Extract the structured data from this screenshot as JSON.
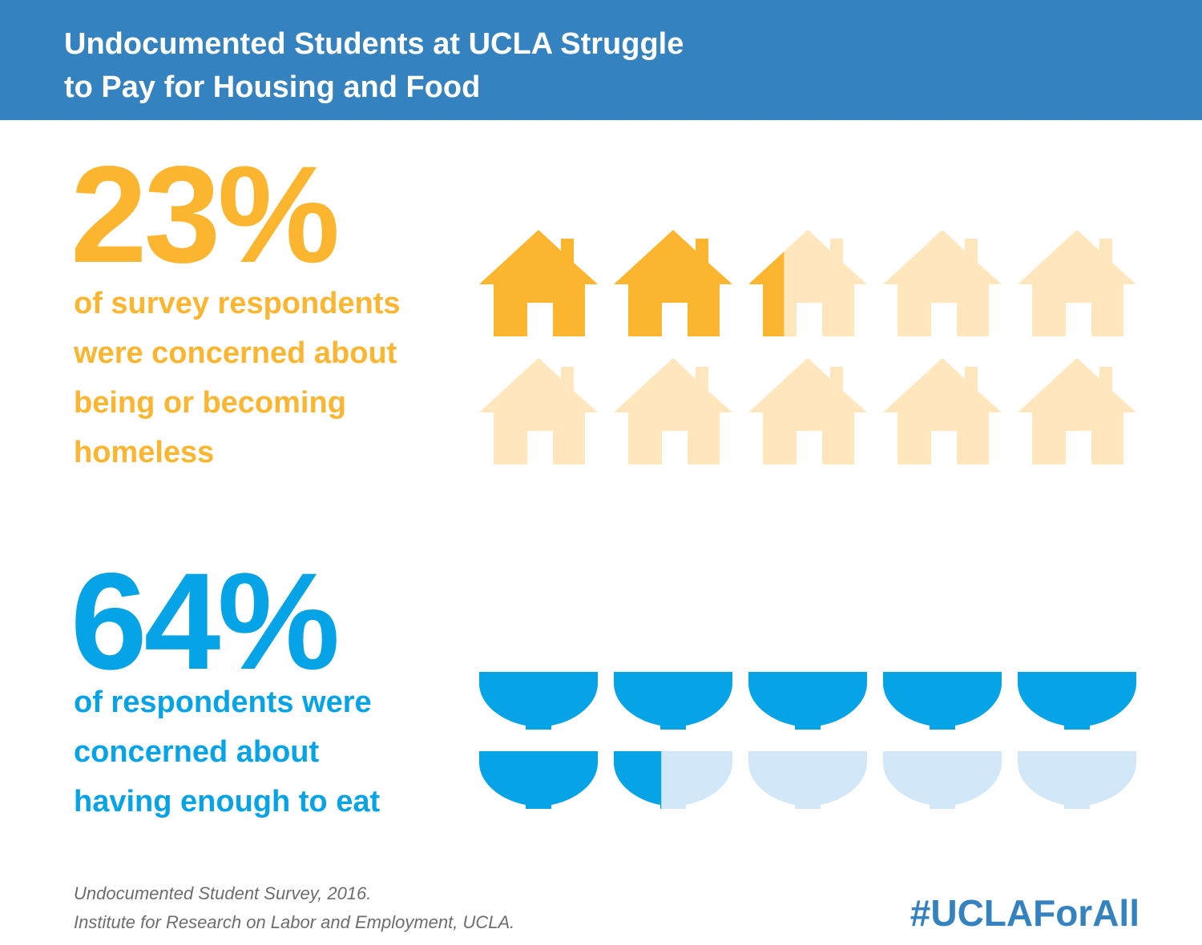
{
  "header": {
    "title": "Undocumented Students at UCLA Struggle\nto Pay for Housing and Food"
  },
  "housing": {
    "percent_label": "23%",
    "description": "of survey respondents\nwere concerned about\nbeing or becoming\nhomeless"
  },
  "food": {
    "percent_label": "64%",
    "description": "of respondents were\nconcerned about\nhaving enough to eat"
  },
  "footer": {
    "source": "Undocumented Student Survey, 2016.\nInstitute for Research on Labor and Employment, UCLA.",
    "hashtag": "#UCLAForAll"
  },
  "colors": {
    "header_bg": "#3483c0",
    "housing_fill": "#fbb52f",
    "housing_empty": "#ffe6bd",
    "food_fill": "#06a4e7",
    "food_empty": "#d2e8f8"
  },
  "chart_data": [
    {
      "type": "pictograph",
      "icon": "house-icon",
      "total_icons": 10,
      "value_percent": 23,
      "filled_color": "#fbb52f",
      "empty_color": "#ffe6bd"
    },
    {
      "type": "pictograph",
      "icon": "bowl-icon",
      "total_icons": 10,
      "value_percent": 64,
      "filled_color": "#06a4e7",
      "empty_color": "#d2e8f8"
    }
  ]
}
